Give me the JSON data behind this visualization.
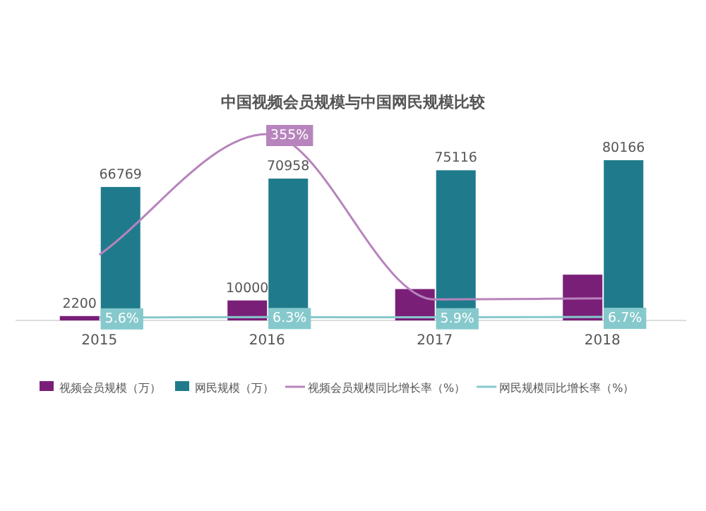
{
  "chart_data": {
    "type": "bar",
    "title": "中国视频会员规模与中国网民规模比较",
    "categories": [
      "2015",
      "2016",
      "2017",
      "2018"
    ],
    "legend": "bottom",
    "series": [
      {
        "name": "视频会员规模（万）",
        "color": "#7a1f78",
        "values": [
          2200,
          10000,
          15700,
          22900
        ],
        "value_labels": [
          "2200",
          "10000",
          null,
          null
        ]
      },
      {
        "name": "网民规模（万）",
        "color": "#1f7b8b",
        "values": [
          66769,
          70958,
          75116,
          80166
        ],
        "value_labels": [
          "66769",
          "70958",
          "75116",
          "80166"
        ]
      },
      {
        "name": "视频会员规模同比增长率（%）",
        "type": "line",
        "axis": "y2",
        "color": "#b784bd",
        "values": [
          125,
          355,
          40,
          42
        ],
        "value_labels": [
          null,
          "355%",
          null,
          null
        ]
      },
      {
        "name": "网民规模同比增长率（%）",
        "type": "line",
        "axis": "y2",
        "color": "#86c9cc",
        "values": [
          5.6,
          6.3,
          5.9,
          6.7
        ],
        "value_labels": [
          "5.6%",
          "6.3%",
          "5.9%",
          "6.7%"
        ]
      }
    ]
  }
}
